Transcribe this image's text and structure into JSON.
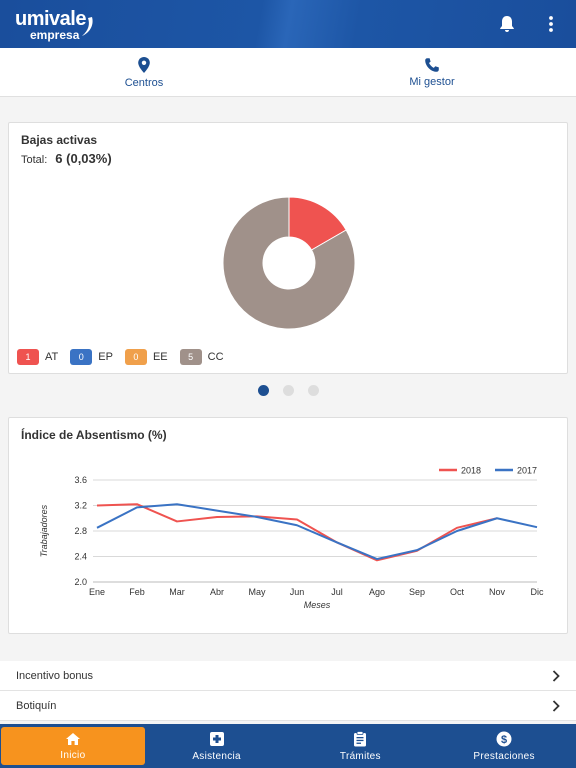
{
  "header": {
    "logo_main": "umivale",
    "logo_sub": "empresa",
    "notifications_icon": "bell-icon",
    "menu_icon": "more-vertical-icon"
  },
  "quick_nav": [
    {
      "label": "Centros",
      "icon": "location-pin-icon"
    },
    {
      "label": "Mi gestor",
      "icon": "phone-icon"
    }
  ],
  "bajas": {
    "title": "Bajas activas",
    "total_label": "Total:",
    "total_value": "6 (0,03%)",
    "legend": [
      {
        "count": "1",
        "label": "AT",
        "color": "#ef5350"
      },
      {
        "count": "0",
        "label": "EP",
        "color": "#3a73c4"
      },
      {
        "count": "0",
        "label": "EE",
        "color": "#f0a04b"
      },
      {
        "count": "5",
        "label": "CC",
        "color": "#a0918a"
      }
    ]
  },
  "absentismo": {
    "title": "Índice de Absentismo (%)"
  },
  "chart_data": [
    {
      "type": "pie",
      "donut": true,
      "categories": [
        "AT",
        "EP",
        "EE",
        "CC"
      ],
      "values": [
        1,
        0,
        0,
        5
      ],
      "colors": [
        "#ef5350",
        "#3a73c4",
        "#f0a04b",
        "#a0918a"
      ]
    },
    {
      "type": "line",
      "categories": [
        "Ene",
        "Feb",
        "Mar",
        "Abr",
        "May",
        "Jun",
        "Jul",
        "Ago",
        "Sep",
        "Oct",
        "Nov",
        "Dic"
      ],
      "series": [
        {
          "name": "2018",
          "color": "#ef5350",
          "values": [
            3.2,
            3.22,
            2.95,
            3.02,
            3.03,
            2.98,
            2.62,
            2.34,
            2.49,
            2.85,
            3.0,
            null
          ]
        },
        {
          "name": "2017",
          "color": "#3a73c4",
          "values": [
            2.85,
            3.17,
            3.22,
            3.12,
            3.02,
            2.89,
            2.62,
            2.36,
            2.5,
            2.8,
            3.0,
            2.86
          ]
        }
      ],
      "xlabel": "Meses",
      "ylabel": "Trabajadores",
      "ylim": [
        2.0,
        3.6
      ],
      "yticks": [
        "2.0",
        "2.4",
        "2.8",
        "3.2",
        "3.6"
      ],
      "grid": true,
      "legend_position": "top-right"
    }
  ],
  "pager": {
    "count": 3,
    "active": 0
  },
  "list": [
    {
      "label": "Incentivo bonus"
    },
    {
      "label": "Botiquín"
    }
  ],
  "bottom_nav": [
    {
      "label": "Inicio",
      "icon": "home-icon",
      "active": true
    },
    {
      "label": "Asistencia",
      "icon": "medical-cross-icon",
      "active": false
    },
    {
      "label": "Trámites",
      "icon": "clipboard-icon",
      "active": false
    },
    {
      "label": "Prestaciones",
      "icon": "dollar-icon",
      "active": false
    }
  ]
}
